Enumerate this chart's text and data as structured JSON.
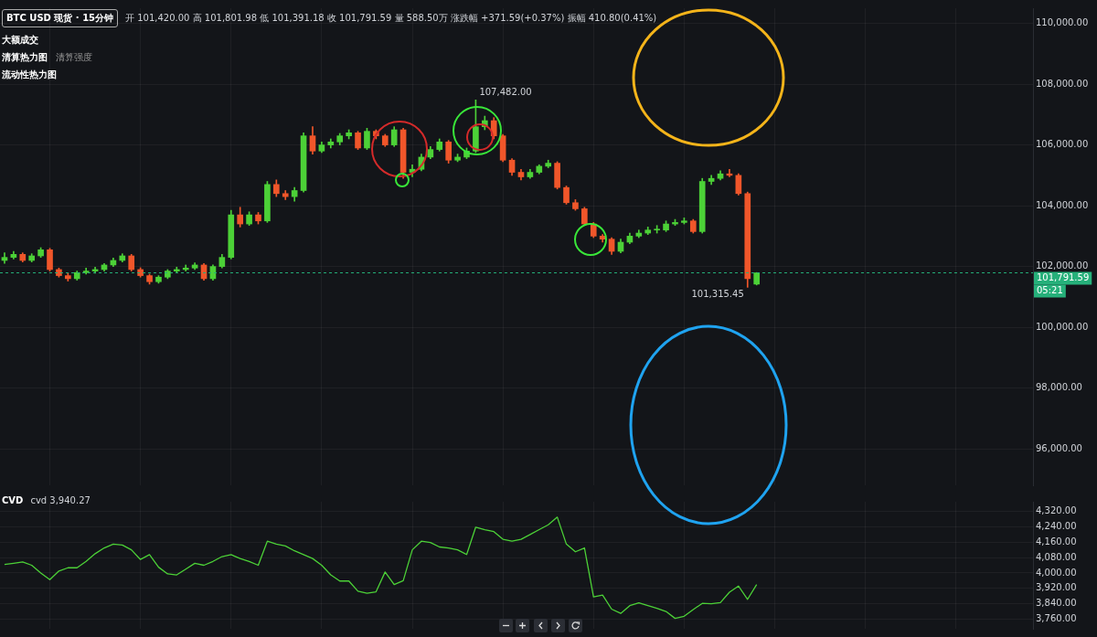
{
  "chart_data": [
    {
      "type": "candlestick",
      "title": "BTC USD 现货 · 15分钟",
      "subtitle": "开 101,420.00 高 101,801.98 低 101,391.18 收 101,791.59 量 588.50万 涨跌幅 +371.59(+0.37%) 振幅 410.80(0.41%)",
      "annotations": [
        "大额成交",
        "清算热力图",
        "清算强度",
        "流动性热力图",
        "107,482.00",
        "101,315.45",
        "05:21"
      ],
      "categories": [
        null,
        null,
        null,
        null,
        null,
        null,
        null,
        null,
        null,
        null,
        null,
        null,
        null,
        null,
        null,
        null,
        null,
        null,
        null,
        null,
        null,
        null,
        null,
        null,
        null,
        null,
        null,
        null,
        null,
        null,
        null,
        null,
        null,
        null,
        null,
        null,
        null,
        null,
        null,
        null,
        null,
        null,
        null,
        null,
        null,
        null,
        null,
        null,
        null,
        null,
        null,
        null,
        null,
        null,
        null,
        null,
        null,
        null,
        null,
        null,
        null,
        null,
        null,
        null,
        null,
        null,
        null,
        null,
        null,
        null,
        null,
        null,
        null,
        null,
        null,
        null,
        null,
        null,
        null,
        null,
        null,
        null,
        null,
        null,
        null,
        null,
        null,
        null,
        null,
        null,
        null,
        null,
        null,
        null,
        null,
        null,
        null,
        null,
        null,
        null,
        null,
        null,
        null,
        null,
        null,
        null,
        null,
        null,
        null,
        null,
        null,
        null,
        null,
        null
      ],
      "ohlc": [
        [
          102200,
          102450,
          102100,
          102300
        ],
        [
          102300,
          102500,
          102250,
          102400
        ],
        [
          102400,
          102450,
          102150,
          102200
        ],
        [
          102200,
          102420,
          102150,
          102350
        ],
        [
          102350,
          102620,
          102300,
          102550
        ],
        [
          102550,
          102600,
          101850,
          101900
        ],
        [
          101900,
          101950,
          101650,
          101700
        ],
        [
          101700,
          101780,
          101520,
          101600
        ],
        [
          101600,
          101850,
          101550,
          101800
        ],
        [
          101800,
          101950,
          101750,
          101850
        ],
        [
          101850,
          101980,
          101780,
          101900
        ],
        [
          101900,
          102100,
          101850,
          102050
        ],
        [
          102050,
          102280,
          102000,
          102200
        ],
        [
          102200,
          102420,
          102150,
          102350
        ],
        [
          102350,
          102400,
          101850,
          101900
        ],
        [
          101900,
          101960,
          101650,
          101700
        ],
        [
          101700,
          101750,
          101420,
          101500
        ],
        [
          101500,
          101700,
          101450,
          101650
        ],
        [
          101650,
          101900,
          101600,
          101850
        ],
        [
          101850,
          101980,
          101800,
          101900
        ],
        [
          101900,
          102050,
          101850,
          101950
        ],
        [
          101950,
          102120,
          101900,
          102050
        ],
        [
          102050,
          102100,
          101550,
          101600
        ],
        [
          101600,
          102050,
          101550,
          102000
        ],
        [
          102000,
          102400,
          101950,
          102300
        ],
        [
          102300,
          103850,
          102250,
          103700
        ],
        [
          103700,
          103950,
          103300,
          103400
        ],
        [
          103400,
          103800,
          103350,
          103700
        ],
        [
          103700,
          103780,
          103400,
          103500
        ],
        [
          103500,
          104800,
          103450,
          104700
        ],
        [
          104700,
          104850,
          104300,
          104400
        ],
        [
          104400,
          104500,
          104200,
          104300
        ],
        [
          104300,
          104600,
          104150,
          104500
        ],
        [
          104500,
          106400,
          104450,
          106300
        ],
        [
          106300,
          106600,
          105700,
          105800
        ],
        [
          105800,
          106100,
          105750,
          106000
        ],
        [
          106000,
          106200,
          105900,
          106100
        ],
        [
          106100,
          106380,
          106000,
          106300
        ],
        [
          106300,
          106500,
          106200,
          106400
        ],
        [
          106400,
          106450,
          105850,
          105900
        ],
        [
          105900,
          106550,
          105850,
          106450
        ],
        [
          106450,
          106500,
          106200,
          106300
        ],
        [
          106300,
          106350,
          105950,
          106000
        ],
        [
          106000,
          106600,
          105950,
          106500
        ],
        [
          106500,
          106550,
          104900,
          105100
        ],
        [
          105100,
          105350,
          104950,
          105200
        ],
        [
          105200,
          105700,
          105150,
          105600
        ],
        [
          105600,
          105950,
          105550,
          105850
        ],
        [
          105850,
          106200,
          105800,
          106100
        ],
        [
          106100,
          106150,
          105400,
          105500
        ],
        [
          105500,
          105700,
          105450,
          105600
        ],
        [
          105600,
          105900,
          105550,
          105800
        ],
        [
          105800,
          107482,
          105750,
          106600
        ],
        [
          106600,
          106950,
          106500,
          106800
        ],
        [
          106800,
          106900,
          106200,
          106300
        ],
        [
          106300,
          106350,
          105450,
          105500
        ],
        [
          105500,
          105550,
          105000,
          105100
        ],
        [
          105100,
          105200,
          104850,
          104950
        ],
        [
          104950,
          105200,
          104900,
          105100
        ],
        [
          105100,
          105350,
          105050,
          105300
        ],
        [
          105300,
          105500,
          105250,
          105400
        ],
        [
          105400,
          105450,
          104550,
          104600
        ],
        [
          104600,
          104650,
          104050,
          104100
        ],
        [
          104100,
          104200,
          103850,
          103900
        ],
        [
          103900,
          103950,
          103350,
          103400
        ],
        [
          103400,
          103450,
          102950,
          103000
        ],
        [
          103000,
          103050,
          102800,
          102900
        ],
        [
          102900,
          102950,
          102400,
          102500
        ],
        [
          102500,
          102900,
          102450,
          102800
        ],
        [
          102800,
          103100,
          102750,
          103000
        ],
        [
          103000,
          103200,
          102950,
          103100
        ],
        [
          103100,
          103300,
          103050,
          103200
        ],
        [
          103200,
          103350,
          103100,
          103200
        ],
        [
          103200,
          103500,
          103150,
          103400
        ],
        [
          103400,
          103550,
          103350,
          103450
        ],
        [
          103450,
          103600,
          103400,
          103500
        ],
        [
          103500,
          103550,
          103100,
          103150
        ],
        [
          103150,
          104900,
          103100,
          104800
        ],
        [
          104800,
          105000,
          104700,
          104900
        ],
        [
          104900,
          105150,
          104850,
          105050
        ],
        [
          105050,
          105200,
          104950,
          105000
        ],
        [
          105000,
          105050,
          104350,
          104400
        ],
        [
          104400,
          104450,
          101315.45,
          101600
        ],
        [
          101420,
          101801.98,
          101391.18,
          101791.59
        ],
        null,
        null,
        null,
        null,
        null,
        null,
        null,
        null,
        null,
        null,
        null,
        null,
        null,
        null,
        null,
        null,
        null,
        null,
        null,
        null,
        null,
        null,
        null,
        null,
        null,
        null,
        null,
        null,
        null,
        null
      ],
      "ylim": [
        94800,
        110500
      ],
      "yticks": [
        {
          "value": 96000,
          "label": "96,000.00"
        },
        {
          "value": 98000,
          "label": "98,000.00"
        },
        {
          "value": 100000,
          "label": "100,000.00"
        },
        {
          "value": 102000,
          "label": "102,000.00"
        },
        {
          "value": 104000,
          "label": "104,000.00"
        },
        {
          "value": 106000,
          "label": "106,000.00"
        },
        {
          "value": 108000,
          "label": "108,000.00"
        },
        {
          "value": 110000,
          "label": "110,000.00"
        }
      ],
      "ref_lines": [
        {
          "axis": "y",
          "value": 101791.59,
          "label": "101,791.59",
          "color": "#26b07a",
          "line_style": "dashed"
        }
      ],
      "tick_labels": "y",
      "grid": true
    },
    {
      "type": "line",
      "title": "CVD",
      "subtitle": "cvd 3,940.27",
      "categories": [
        null,
        null,
        null,
        null,
        null,
        null,
        null,
        null,
        null,
        null,
        null,
        null,
        null,
        null,
        null,
        null,
        null,
        null,
        null,
        null,
        null,
        null,
        null,
        null,
        null,
        null,
        null,
        null,
        null,
        null,
        null,
        null,
        null,
        null,
        null,
        null,
        null,
        null,
        null,
        null,
        null,
        null,
        null,
        null,
        null,
        null,
        null,
        null,
        null,
        null,
        null,
        null,
        null,
        null,
        null,
        null,
        null,
        null,
        null,
        null,
        null,
        null,
        null,
        null,
        null,
        null,
        null,
        null,
        null,
        null,
        null,
        null,
        null,
        null,
        null,
        null,
        null,
        null,
        null,
        null,
        null,
        null,
        null,
        null,
        null,
        null,
        null,
        null,
        null,
        null,
        null,
        null,
        null,
        null,
        null,
        null,
        null,
        null,
        null,
        null,
        null,
        null,
        null,
        null,
        null,
        null,
        null,
        null,
        null,
        null,
        null,
        null,
        null,
        null
      ],
      "series": [
        {
          "color": "#4cd137",
          "values": [
            4044,
            4050,
            4057,
            4040,
            4000,
            3965,
            4010,
            4027,
            4027,
            4060,
            4100,
            4130,
            4150,
            4145,
            4120,
            4070,
            4095,
            4030,
            3995,
            3990,
            4020,
            4050,
            4040,
            4060,
            4085,
            4095,
            4075,
            4060,
            4040,
            4165,
            4150,
            4140,
            4115,
            4095,
            4075,
            4040,
            3990,
            3958,
            3958,
            3905,
            3895,
            3902,
            4005,
            3940,
            3960,
            4120,
            4165,
            4158,
            4135,
            4130,
            4120,
            4096,
            4238,
            4225,
            4215,
            4175,
            4165,
            4175,
            4200,
            4225,
            4250,
            4290,
            4150,
            4110,
            4130,
            3876,
            3885,
            3812,
            3790,
            3830,
            3845,
            3830,
            3816,
            3800,
            3764,
            3775,
            3810,
            3842,
            3840,
            3846,
            3900,
            3932,
            3863,
            3940,
            null,
            null,
            null,
            null,
            null,
            null,
            null,
            null,
            null,
            null,
            null,
            null,
            null,
            null,
            null,
            null,
            null,
            null,
            null,
            null,
            null,
            null,
            null,
            null,
            null,
            null,
            null,
            null,
            null,
            null
          ]
        }
      ],
      "ylim": [
        3710,
        4370
      ],
      "yticks": [
        {
          "value": 3760,
          "label": "3,760.00"
        },
        {
          "value": 3840,
          "label": "3,840.00"
        },
        {
          "value": 3920,
          "label": "3,920.00"
        },
        {
          "value": 4000,
          "label": "4,000.00"
        },
        {
          "value": 4080,
          "label": "4,080.00"
        },
        {
          "value": 4160,
          "label": "4,160.00"
        },
        {
          "value": 4240,
          "label": "4,240.00"
        },
        {
          "value": 4320,
          "label": "4,320.00"
        }
      ],
      "marker": "none",
      "line_style": "solid",
      "tick_labels": "y",
      "grid": true
    }
  ]
}
